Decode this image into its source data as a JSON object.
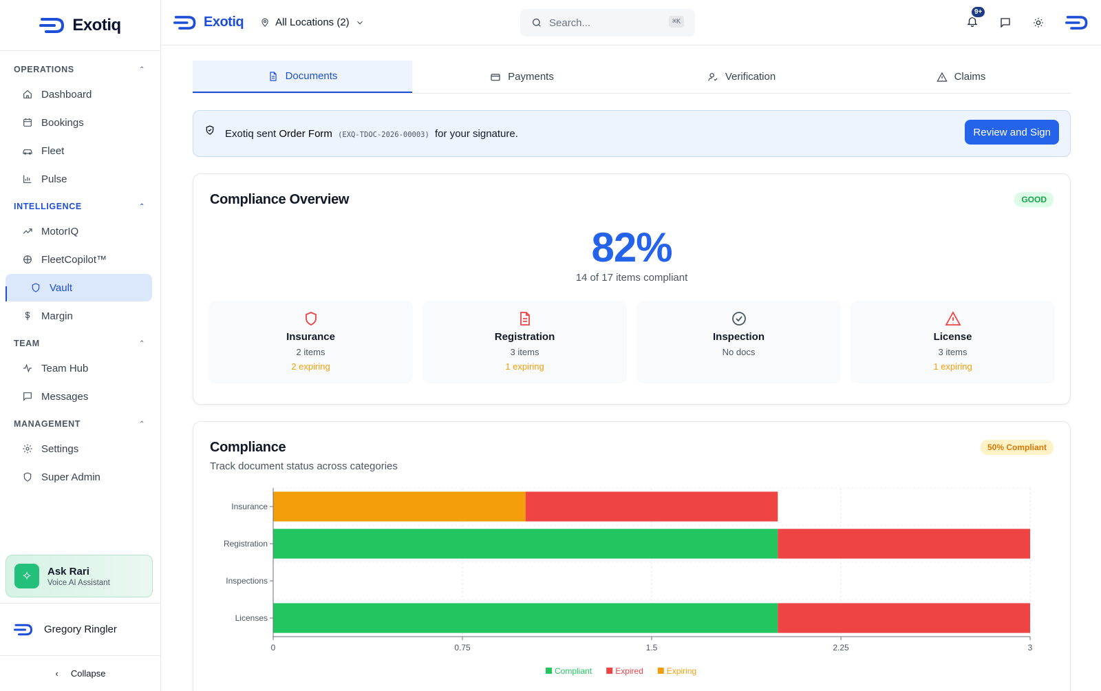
{
  "brand": {
    "name": "Exotiq"
  },
  "sidebar": {
    "sections": [
      {
        "title": "OPERATIONS",
        "items": [
          "Dashboard",
          "Bookings",
          "Fleet",
          "Pulse"
        ]
      },
      {
        "title": "INTELLIGENCE",
        "items": [
          "MotorIQ",
          "FleetCopilot™",
          "Vault",
          "Margin"
        ]
      },
      {
        "title": "TEAM",
        "items": [
          "Team Hub",
          "Messages"
        ]
      },
      {
        "title": "MANAGEMENT",
        "items": [
          "Settings",
          "Super Admin"
        ]
      }
    ],
    "active_item": "Vault",
    "assistant": {
      "title": "Ask Rari",
      "subtitle": "Voice AI Assistant"
    },
    "user": "Gregory Ringler",
    "collapse_label": "Collapse"
  },
  "header": {
    "brand": "Exotiq",
    "location": "All Locations (2)",
    "search_placeholder": "Search...",
    "search_shortcut": "⌘K",
    "notifications_badge": "9+"
  },
  "tabs": [
    {
      "label": "Documents",
      "icon": "file-icon",
      "active": true
    },
    {
      "label": "Payments",
      "icon": "card-icon",
      "active": false
    },
    {
      "label": "Verification",
      "icon": "user-check-icon",
      "active": false
    },
    {
      "label": "Claims",
      "icon": "warning-icon",
      "active": false
    }
  ],
  "notice": {
    "prefix": "Exotiq sent",
    "doc_name": "Order Form",
    "doc_code": "(EXQ-TDOC-2026-00003)",
    "suffix": "for your signature.",
    "button": "Review and Sign"
  },
  "overview": {
    "title": "Compliance Overview",
    "status": "GOOD",
    "percent": "82%",
    "summary": "14 of 17 items compliant",
    "categories": [
      {
        "name": "Insurance",
        "items": "2 items",
        "expiring": "2 expiring",
        "icon": "shield-icon",
        "color": "#ef4444"
      },
      {
        "name": "Registration",
        "items": "3 items",
        "expiring": "1 expiring",
        "icon": "document-icon",
        "color": "#ef4444"
      },
      {
        "name": "Inspection",
        "items": "No docs",
        "expiring": "",
        "icon": "check-circle-icon",
        "color": "#4b5563"
      },
      {
        "name": "License",
        "items": "3 items",
        "expiring": "1 expiring",
        "icon": "alert-triangle-icon",
        "color": "#ef4444"
      }
    ]
  },
  "compliance": {
    "title": "Compliance",
    "subtitle": "Track document status across categories",
    "badge": "50% Compliant"
  },
  "chart_data": {
    "type": "bar",
    "orientation": "horizontal",
    "stacked": true,
    "categories": [
      "Insurance",
      "Registration",
      "Inspections",
      "Licenses"
    ],
    "series": [
      {
        "name": "Compliant",
        "color": "#22c55e",
        "values": [
          0,
          2,
          0,
          2
        ]
      },
      {
        "name": "Expired",
        "color": "#ef4444",
        "values": [
          1,
          1,
          0,
          1
        ]
      },
      {
        "name": "Expiring",
        "color": "#f59e0b",
        "values": [
          1,
          0,
          0,
          0
        ]
      }
    ],
    "xlim": [
      0,
      3
    ],
    "xticks": [
      "0",
      "0.75",
      "1.5",
      "2.25",
      "3"
    ],
    "grid": true,
    "legend": "bottom"
  }
}
